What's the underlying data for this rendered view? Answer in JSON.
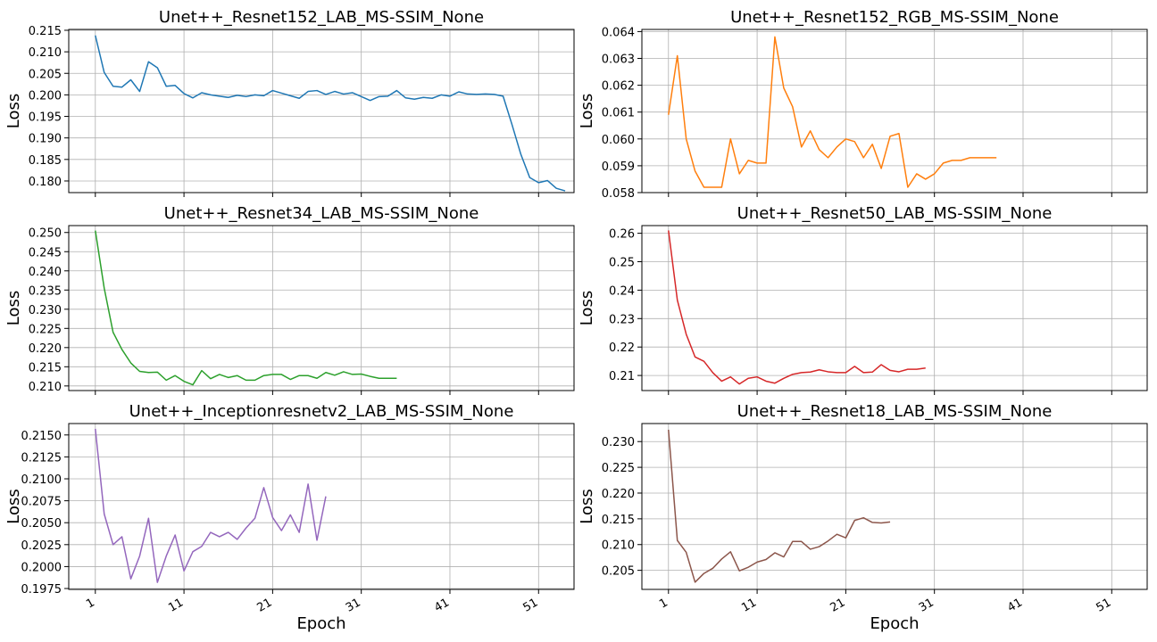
{
  "figure": {
    "xlabel": "Epoch",
    "xticks": [
      1,
      11,
      21,
      31,
      41,
      51
    ],
    "xlim": [
      -2,
      55
    ]
  },
  "chart_data": [
    {
      "type": "line",
      "title": "Unet++_Resnet152_LAB_MS-SSIM_None",
      "ylabel": "Loss",
      "color": "#1f77b4",
      "ylim": [
        0.1773,
        0.2152
      ],
      "yticks": [
        0.18,
        0.185,
        0.19,
        0.195,
        0.2,
        0.205,
        0.21,
        0.215
      ],
      "ytick_labels": [
        "0.180",
        "0.185",
        "0.190",
        "0.195",
        "0.200",
        "0.205",
        "0.210",
        "0.215"
      ],
      "grid": true,
      "x": [
        1,
        2,
        3,
        4,
        5,
        6,
        7,
        8,
        9,
        10,
        11,
        12,
        13,
        14,
        15,
        16,
        17,
        18,
        19,
        20,
        21,
        22,
        23,
        24,
        25,
        26,
        27,
        28,
        29,
        30,
        31,
        32,
        33,
        34,
        35,
        36,
        37,
        38,
        39,
        40,
        41,
        42,
        43,
        44,
        45,
        46,
        47,
        48,
        49,
        50,
        51,
        52,
        53,
        54
      ],
      "values": [
        0.2138,
        0.2052,
        0.202,
        0.2018,
        0.2035,
        0.2008,
        0.2077,
        0.2063,
        0.202,
        0.2022,
        0.2003,
        0.1993,
        0.2005,
        0.2,
        0.1997,
        0.1994,
        0.1999,
        0.1996,
        0.2,
        0.1998,
        0.201,
        0.2004,
        0.1998,
        0.1992,
        0.2008,
        0.201,
        0.2001,
        0.2008,
        0.2002,
        0.2005,
        0.1996,
        0.1987,
        0.1996,
        0.1997,
        0.201,
        0.1993,
        0.199,
        0.1994,
        0.1992,
        0.2,
        0.1997,
        0.2007,
        0.2002,
        0.2001,
        0.2002,
        0.2001,
        0.1997,
        0.1931,
        0.1862,
        0.1808,
        0.1796,
        0.1801,
        0.1783,
        0.1777
      ]
    },
    {
      "type": "line",
      "title": "Unet++_Resnet152_RGB_MS-SSIM_None",
      "ylabel": "Loss",
      "color": "#ff7f0e",
      "ylim": [
        0.058,
        0.06408
      ],
      "yticks": [
        0.058,
        0.059,
        0.06,
        0.061,
        0.062,
        0.063,
        0.064
      ],
      "ytick_labels": [
        "0.058",
        "0.059",
        "0.060",
        "0.061",
        "0.062",
        "0.063",
        "0.064"
      ],
      "grid": true,
      "x": [
        1,
        2,
        3,
        4,
        5,
        6,
        7,
        8,
        9,
        10,
        11,
        12,
        13,
        14,
        15,
        16,
        17,
        18,
        19,
        20,
        21,
        22,
        23,
        24,
        25,
        26,
        27,
        28,
        29,
        30,
        31,
        32,
        33,
        34,
        35,
        36,
        37,
        38
      ],
      "values": [
        0.0609,
        0.0631,
        0.06,
        0.0588,
        0.0582,
        0.0582,
        0.0582,
        0.06,
        0.0587,
        0.0592,
        0.0591,
        0.0591,
        0.0638,
        0.0619,
        0.0612,
        0.0597,
        0.0603,
        0.0596,
        0.0593,
        0.0597,
        0.06,
        0.0599,
        0.0593,
        0.0598,
        0.0589,
        0.0601,
        0.0602,
        0.0582,
        0.0587,
        0.0585,
        0.0587,
        0.0591,
        0.0592,
        0.0592,
        0.0593,
        0.0593,
        0.0593,
        0.0593
      ]
    },
    {
      "type": "line",
      "title": "Unet++_Resnet34_LAB_MS-SSIM_None",
      "ylabel": "Loss",
      "color": "#2ca02c",
      "ylim": [
        0.2088,
        0.2518
      ],
      "yticks": [
        0.21,
        0.215,
        0.22,
        0.225,
        0.23,
        0.235,
        0.24,
        0.245,
        0.25
      ],
      "ytick_labels": [
        "0.210",
        "0.215",
        "0.220",
        "0.225",
        "0.230",
        "0.235",
        "0.240",
        "0.245",
        "0.250"
      ],
      "grid": true,
      "x": [
        1,
        2,
        3,
        4,
        5,
        6,
        7,
        8,
        9,
        10,
        11,
        12,
        13,
        14,
        15,
        16,
        17,
        18,
        19,
        20,
        21,
        22,
        23,
        24,
        25,
        26,
        27,
        28,
        29,
        30,
        31,
        32,
        33,
        34,
        35
      ],
      "values": [
        0.2505,
        0.2355,
        0.224,
        0.2195,
        0.216,
        0.2138,
        0.2135,
        0.2136,
        0.2115,
        0.2127,
        0.2112,
        0.2103,
        0.214,
        0.2119,
        0.213,
        0.2122,
        0.2127,
        0.2115,
        0.2115,
        0.2127,
        0.213,
        0.213,
        0.2117,
        0.2127,
        0.2127,
        0.212,
        0.2135,
        0.2128,
        0.2137,
        0.213,
        0.2131,
        0.2125,
        0.212,
        0.212,
        0.212
      ]
    },
    {
      "type": "line",
      "title": "Unet++_Resnet50_LAB_MS-SSIM_None",
      "ylabel": "Loss",
      "color": "#d62728",
      "ylim": [
        0.2047,
        0.2627
      ],
      "yticks": [
        0.21,
        0.22,
        0.23,
        0.24,
        0.25,
        0.26
      ],
      "ytick_labels": [
        "0.21",
        "0.22",
        "0.23",
        "0.24",
        "0.25",
        "0.26"
      ],
      "grid": true,
      "x": [
        1,
        2,
        3,
        4,
        5,
        6,
        7,
        8,
        9,
        10,
        11,
        12,
        13,
        14,
        15,
        16,
        17,
        18,
        19,
        20,
        21,
        22,
        23,
        24,
        25,
        26,
        27,
        28,
        29,
        30
      ],
      "values": [
        0.261,
        0.2365,
        0.2245,
        0.2165,
        0.215,
        0.211,
        0.208,
        0.2095,
        0.207,
        0.209,
        0.2095,
        0.208,
        0.2073,
        0.209,
        0.2104,
        0.211,
        0.2112,
        0.212,
        0.2113,
        0.211,
        0.211,
        0.2132,
        0.211,
        0.2112,
        0.2138,
        0.2118,
        0.2113,
        0.2122,
        0.2122,
        0.2126
      ]
    },
    {
      "type": "line",
      "title": "Unet++_Inceptionresnetv2_LAB_MS-SSIM_None",
      "ylabel": "Loss",
      "color": "#9467bd",
      "ylim": [
        0.1974,
        0.2163
      ],
      "yticks": [
        0.1975,
        0.2,
        0.2025,
        0.205,
        0.2075,
        0.21,
        0.2125,
        0.215
      ],
      "ytick_labels": [
        "0.1975",
        "0.2000",
        "0.2025",
        "0.2050",
        "0.2075",
        "0.2100",
        "0.2125",
        "0.2150"
      ],
      "grid": true,
      "x": [
        1,
        2,
        3,
        4,
        5,
        6,
        7,
        8,
        9,
        10,
        11,
        12,
        13,
        14,
        15,
        16,
        17,
        18,
        19,
        20,
        21,
        22,
        23,
        24,
        25,
        26,
        27
      ],
      "values": [
        0.2157,
        0.206,
        0.2025,
        0.2034,
        0.1986,
        0.2012,
        0.2055,
        0.1982,
        0.2012,
        0.2036,
        0.1995,
        0.2017,
        0.2023,
        0.2039,
        0.2034,
        0.2039,
        0.2031,
        0.2044,
        0.2055,
        0.209,
        0.2056,
        0.2041,
        0.2059,
        0.2039,
        0.2094,
        0.203,
        0.208
      ]
    },
    {
      "type": "line",
      "title": "Unet++_Resnet18_LAB_MS-SSIM_None",
      "ylabel": "Loss",
      "color": "#8c564b",
      "ylim": [
        0.2013,
        0.2335
      ],
      "yticks": [
        0.205,
        0.21,
        0.215,
        0.22,
        0.225,
        0.23
      ],
      "ytick_labels": [
        "0.205",
        "0.210",
        "0.215",
        "0.220",
        "0.225",
        "0.230"
      ],
      "grid": true,
      "x": [
        1,
        2,
        3,
        4,
        5,
        6,
        7,
        8,
        9,
        10,
        11,
        12,
        13,
        14,
        15,
        16,
        17,
        18,
        19,
        20,
        21,
        22,
        23,
        24,
        25,
        26
      ],
      "values": [
        0.2323,
        0.2108,
        0.2085,
        0.2027,
        0.2044,
        0.2054,
        0.2072,
        0.2086,
        0.2049,
        0.2056,
        0.2066,
        0.2071,
        0.2084,
        0.2076,
        0.2106,
        0.2106,
        0.2091,
        0.2096,
        0.2107,
        0.212,
        0.2113,
        0.2147,
        0.2152,
        0.2143,
        0.2142,
        0.2144
      ]
    }
  ]
}
